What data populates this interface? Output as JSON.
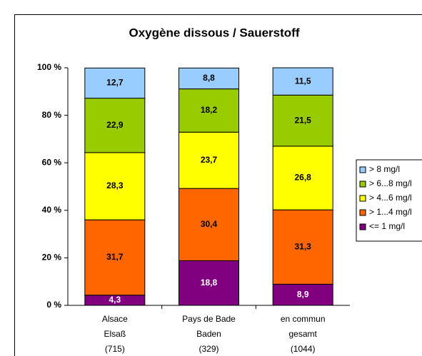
{
  "chart_data": {
    "type": "stacked_bar",
    "title": "Oxygène dissous / Sauerstoff",
    "categories": [
      [
        "Alsace",
        "Elsaß",
        "(715)"
      ],
      [
        "Pays de Bade",
        "Baden",
        "(329)"
      ],
      [
        "en commun",
        "gesamt",
        "(1044)"
      ]
    ],
    "series": [
      {
        "name": "<= 1 mg/l",
        "color": "#800080",
        "values": [
          4.3,
          18.8,
          8.9
        ],
        "value_labels": [
          "4,3",
          "18,8",
          "8,9"
        ]
      },
      {
        "name": "> 1...4 mg/l",
        "color": "#ff6600",
        "values": [
          31.7,
          30.4,
          31.3
        ],
        "value_labels": [
          "31,7",
          "30,4",
          "31,3"
        ]
      },
      {
        "name": "> 4...6 mg/l",
        "color": "#ffff00",
        "values": [
          28.3,
          23.7,
          26.8
        ],
        "value_labels": [
          "28,3",
          "23,7",
          "26,8"
        ]
      },
      {
        "name": "> 6...8 mg/l",
        "color": "#99cc00",
        "values": [
          22.9,
          18.2,
          21.5
        ],
        "value_labels": [
          "22,9",
          "18,2",
          "21,5"
        ]
      },
      {
        "name": "> 8 mg/l",
        "color": "#99ccff",
        "values": [
          12.7,
          8.8,
          11.5
        ],
        "value_labels": [
          "12,7",
          "8,8",
          "11,5"
        ]
      }
    ],
    "ylim": [
      0,
      100
    ],
    "yticks": [
      {
        "value": 0,
        "label": "0 %"
      },
      {
        "value": 20,
        "label": "20 %"
      },
      {
        "value": 40,
        "label": "40 %"
      },
      {
        "value": 60,
        "label": "60 %"
      },
      {
        "value": 80,
        "label": "80 %"
      },
      {
        "value": 100,
        "label": "100 %"
      }
    ],
    "legend": "right"
  }
}
